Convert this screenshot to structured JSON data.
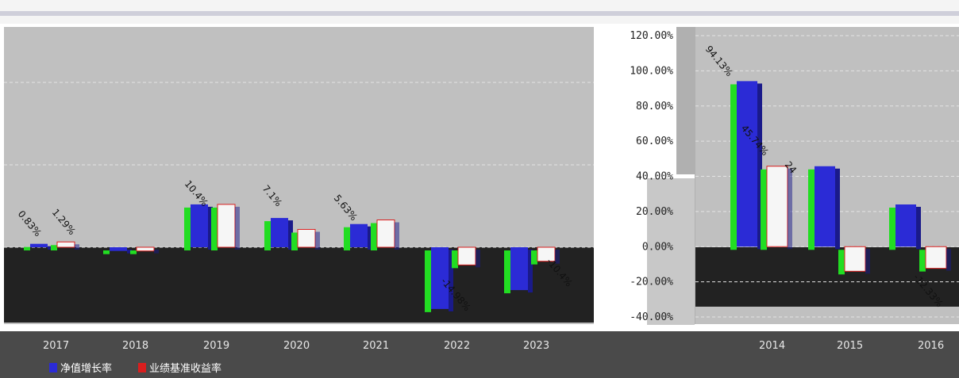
{
  "chart_data": {
    "type": "bar",
    "categories": [
      "2014",
      "2015",
      "2016",
      "2017",
      "2018",
      "2019",
      "2020",
      "2021",
      "2022",
      "2023"
    ],
    "series": [
      {
        "name": "净值增长率",
        "color": "#2b2bd6",
        "values": [
          94.13,
          45.74,
          24.0,
          0.83,
          -0.9,
          10.4,
          7.1,
          5.63,
          -14.98,
          -10.4
        ]
      },
      {
        "name": "业绩基准收益率",
        "color": "#d91e1e",
        "values": [
          45.74,
          -14.0,
          -12.33,
          1.29,
          -0.9,
          10.4,
          4.33,
          6.63,
          -4.3,
          -3.4
        ]
      }
    ],
    "ylim": [
      -40,
      120
    ],
    "yticks": [
      -40,
      -20,
      0,
      20,
      40,
      60,
      80,
      100,
      120
    ],
    "ytick_labels": [
      "-40.00%",
      "-20.00%",
      "0.00%",
      "20.00%",
      "40.00%",
      "60.00%",
      "80.00%",
      "100.00%",
      "120.00%"
    ],
    "data_labels": [
      "94.13%",
      "45.74%",
      "24",
      "0.83%",
      "1.29%",
      "10.4%",
      "7.1%",
      "5.63%",
      "-14.98%",
      "-10.4%",
      "-12.33%"
    ],
    "grid": true,
    "legend": "bottom-left",
    "colors": {
      "plot_bg": "#c0c0c0",
      "band": "#222222",
      "axis_bg": "#4a4a4a",
      "highlight": "#22dd22"
    }
  }
}
